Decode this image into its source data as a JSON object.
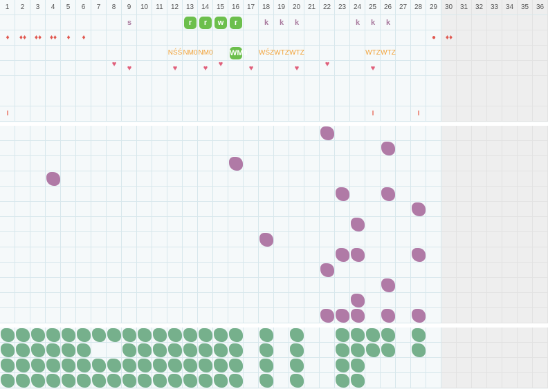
{
  "colors": {
    "grid": "#d7e7ec",
    "cell": "#f5f9fa",
    "disabled": "#eeeeee",
    "purple": "#b07aa6",
    "green": "#76b08c",
    "tag": "#6cbf4c",
    "orange": "#f2a33a",
    "red": "#e0574f",
    "heart": "#e05f7a"
  },
  "days": [
    "1",
    "2",
    "3",
    "4",
    "5",
    "6",
    "7",
    "8",
    "9",
    "10",
    "11",
    "12",
    "13",
    "14",
    "15",
    "16",
    "17",
    "18",
    "19",
    "20",
    "21",
    "22",
    "23",
    "24",
    "25",
    "26",
    "27",
    "28",
    "29",
    "30",
    "31",
    "32",
    "33",
    "34",
    "35",
    "36"
  ],
  "active_days": 29,
  "top_rows": [
    {
      "name": "letters",
      "marks": [
        {
          "d": 9,
          "t": "s",
          "style": "k"
        },
        {
          "d": 13,
          "t": "r",
          "style": "tag"
        },
        {
          "d": 14,
          "t": "r",
          "style": "tag"
        },
        {
          "d": 15,
          "t": "w",
          "style": "tag"
        },
        {
          "d": 16,
          "t": "r",
          "style": "tag"
        },
        {
          "d": 18,
          "t": "k",
          "style": "k"
        },
        {
          "d": 19,
          "t": "k",
          "style": "k"
        },
        {
          "d": 20,
          "t": "k",
          "style": "k"
        },
        {
          "d": 24,
          "t": "k",
          "style": "k"
        },
        {
          "d": 25,
          "t": "k",
          "style": "k"
        },
        {
          "d": 26,
          "t": "k",
          "style": "k"
        }
      ]
    },
    {
      "name": "drops",
      "marks": [
        {
          "d": 1,
          "t": "♦",
          "style": "drop"
        },
        {
          "d": 2,
          "t": "♦♦",
          "style": "drop"
        },
        {
          "d": 3,
          "t": "♦♦",
          "style": "drop"
        },
        {
          "d": 4,
          "t": "♦♦",
          "style": "drop"
        },
        {
          "d": 5,
          "t": "♦",
          "style": "drop"
        },
        {
          "d": 6,
          "t": "♦",
          "style": "drop"
        },
        {
          "d": 29,
          "t": "●",
          "style": "drop"
        },
        {
          "d": 30,
          "t": "♦♦",
          "style": "drop"
        }
      ]
    },
    {
      "name": "codes",
      "marks": [
        {
          "d": 12,
          "t": "NŚŚ",
          "style": "orange"
        },
        {
          "d": 13,
          "t": "NM0",
          "style": "orange"
        },
        {
          "d": 14,
          "t": "NM0",
          "style": "orange"
        },
        {
          "d": 16,
          "t": "WM0",
          "style": "tag"
        },
        {
          "d": 18,
          "t": "WŚZ",
          "style": "orange"
        },
        {
          "d": 19,
          "t": "WTZ",
          "style": "orange"
        },
        {
          "d": 20,
          "t": "WTZ",
          "style": "orange"
        },
        {
          "d": 25,
          "t": "WTZ",
          "style": "orange"
        },
        {
          "d": 26,
          "t": "WTZ",
          "style": "orange"
        }
      ]
    },
    {
      "name": "hearts",
      "marks": [
        {
          "d": 8,
          "t": "♥",
          "style": "heart",
          "o": -1
        },
        {
          "d": 9,
          "t": "♥",
          "style": "heart"
        },
        {
          "d": 12,
          "t": "♥",
          "style": "heart"
        },
        {
          "d": 14,
          "t": "♥",
          "style": "heart"
        },
        {
          "d": 15,
          "t": "♥",
          "style": "heart",
          "o": -1
        },
        {
          "d": 17,
          "t": "♥",
          "style": "heart"
        },
        {
          "d": 20,
          "t": "♥",
          "style": "heart"
        },
        {
          "d": 22,
          "t": "♥",
          "style": "heart",
          "o": -1
        },
        {
          "d": 25,
          "t": "♥",
          "style": "heart"
        }
      ]
    },
    {
      "name": "empty",
      "marks": []
    },
    {
      "name": "ticks",
      "marks": [
        {
          "d": 1,
          "t": "I",
          "style": "tick"
        },
        {
          "d": 25,
          "t": "I",
          "style": "tick"
        },
        {
          "d": 28,
          "t": "I",
          "style": "tick"
        }
      ]
    }
  ],
  "middle_rows": [
    [
      22
    ],
    [
      26
    ],
    [
      16
    ],
    [
      4
    ],
    [
      23,
      26
    ],
    [
      28
    ],
    [
      24
    ],
    [
      18
    ],
    [
      23,
      24,
      28
    ],
    [
      22
    ],
    [
      26
    ],
    [
      24
    ],
    [
      22,
      23,
      24,
      26,
      28
    ]
  ],
  "bottom_rows": [
    [
      1,
      2,
      3,
      4,
      5,
      6,
      7,
      8,
      9,
      10,
      11,
      12,
      13,
      14,
      15,
      16,
      18,
      20,
      23,
      24,
      25,
      26,
      28
    ],
    [
      1,
      2,
      3,
      4,
      5,
      6,
      9,
      10,
      11,
      12,
      13,
      14,
      15,
      16,
      18,
      20,
      23,
      24,
      25,
      26,
      28
    ],
    [
      1,
      2,
      3,
      4,
      5,
      6,
      7,
      8,
      9,
      10,
      11,
      12,
      13,
      14,
      15,
      16,
      18,
      20,
      23,
      24
    ],
    [
      1,
      2,
      3,
      4,
      5,
      6,
      7,
      8,
      9,
      10,
      11,
      12,
      13,
      14,
      15,
      16,
      18,
      20,
      23,
      24
    ]
  ]
}
